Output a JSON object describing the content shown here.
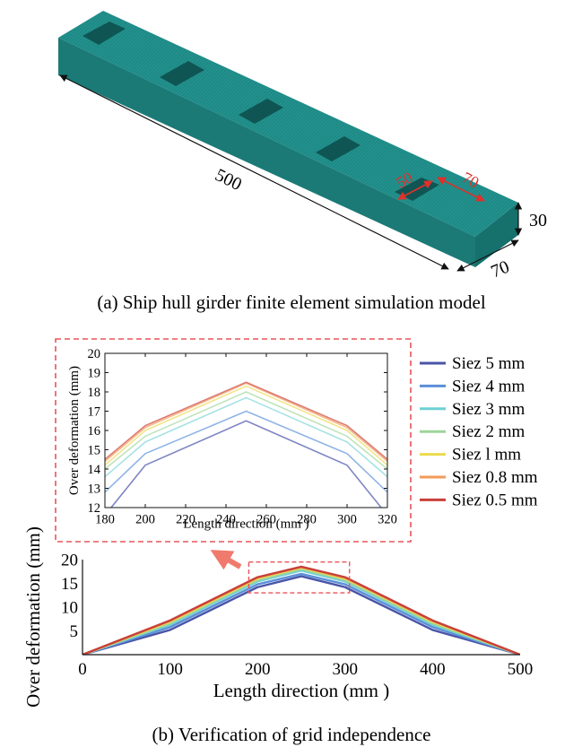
{
  "figure": {
    "caption_a": "(a) Ship hull girder finite element simulation model",
    "caption_b": "(b) Verification of grid independence"
  },
  "model": {
    "mesh_color": "#1f8a86",
    "dim_length": "500",
    "dim_width": "70",
    "dim_height": "30",
    "dim_hole_a": "50",
    "dim_hole_b": "70",
    "dim_hole_color": "#e0302a"
  },
  "chart_data": [
    {
      "type": "line",
      "title": "",
      "xlabel": "Length direction (mm )",
      "ylabel": "Over deformation (mm)",
      "xlim": [
        0,
        500
      ],
      "ylim": [
        0,
        20
      ],
      "xticks": [
        0,
        100,
        200,
        300,
        400,
        500
      ],
      "yticks": [
        5,
        10,
        15,
        20
      ],
      "grid": false,
      "x": [
        0,
        100,
        200,
        250,
        300,
        400,
        500
      ],
      "series": [
        {
          "name": "Siez 5 mm",
          "color": "#4a55a8",
          "values": [
            0,
            5.2,
            14.2,
            16.5,
            14.2,
            5.2,
            0
          ]
        },
        {
          "name": "Siez 4 mm",
          "color": "#5b8fd8",
          "values": [
            0,
            5.8,
            14.8,
            17.0,
            14.8,
            5.8,
            0
          ]
        },
        {
          "name": "Siez 3 mm",
          "color": "#6fd0d4",
          "values": [
            0,
            6.3,
            15.4,
            17.7,
            15.4,
            6.3,
            0
          ]
        },
        {
          "name": "Siez 2 mm",
          "color": "#9fd59a",
          "values": [
            0,
            6.6,
            15.7,
            18.0,
            15.7,
            6.6,
            0
          ]
        },
        {
          "name": "Siez l mm",
          "color": "#ecdb4c",
          "values": [
            0,
            6.9,
            16.0,
            18.3,
            16.0,
            6.9,
            0
          ]
        },
        {
          "name": "Siez 0.8 mm",
          "color": "#f29a57",
          "values": [
            0,
            7.1,
            16.2,
            18.45,
            16.2,
            7.1,
            0
          ]
        },
        {
          "name": "Siez 0.5 mm",
          "color": "#c8403a",
          "values": [
            0,
            7.2,
            16.3,
            18.5,
            16.3,
            7.2,
            0
          ]
        }
      ],
      "zoom_box": {
        "x": [
          190,
          305
        ],
        "y": [
          13,
          19.5
        ],
        "color": "#e8555a"
      }
    },
    {
      "type": "line",
      "title": "",
      "xlabel": "Length direction (mm )",
      "ylabel": "Over deformation (mm)",
      "xlim": [
        180,
        320
      ],
      "ylim": [
        12,
        20
      ],
      "xticks": [
        180,
        200,
        220,
        240,
        260,
        280,
        300,
        320
      ],
      "yticks": [
        12,
        13,
        14,
        15,
        16,
        17,
        18,
        19,
        20
      ],
      "grid": false,
      "x": [
        180,
        200,
        250,
        300,
        320
      ],
      "series": [
        {
          "name": "Siez 5 mm",
          "color": "#7f86c4",
          "values": [
            11.6,
            14.2,
            16.5,
            14.2,
            11.6
          ]
        },
        {
          "name": "Siez 4 mm",
          "color": "#8fb4e6",
          "values": [
            12.8,
            14.8,
            17.0,
            14.8,
            12.8
          ]
        },
        {
          "name": "Siez 3 mm",
          "color": "#a6e2e4",
          "values": [
            13.6,
            15.4,
            17.7,
            15.4,
            13.6
          ]
        },
        {
          "name": "Siez 2 mm",
          "color": "#bfe4bb",
          "values": [
            14.0,
            15.7,
            18.0,
            15.7,
            14.0
          ]
        },
        {
          "name": "Siez l mm",
          "color": "#f2e48a",
          "values": [
            14.2,
            16.0,
            18.3,
            16.0,
            14.2
          ]
        },
        {
          "name": "Siez 0.8 mm",
          "color": "#f5b88a",
          "values": [
            14.4,
            16.15,
            18.45,
            16.15,
            14.4
          ]
        },
        {
          "name": "Siez 0.5 mm",
          "color": "#dd7b73",
          "values": [
            14.5,
            16.25,
            18.5,
            16.25,
            14.5
          ]
        }
      ],
      "frame_color": "#e8555a"
    }
  ]
}
